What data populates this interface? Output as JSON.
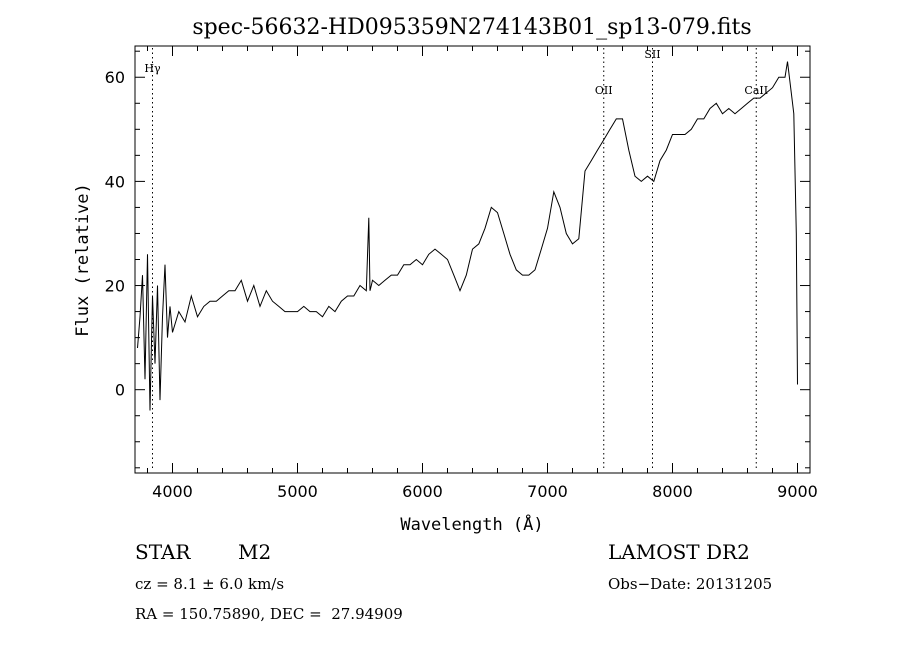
{
  "chart_data": {
    "type": "line",
    "title": "spec-56632-HD095359N274143B01_sp13-079.fits",
    "xlabel": "Wavelength (Å)",
    "ylabel": "Flux (relative)",
    "xlim": [
      3700,
      9100
    ],
    "ylim": [
      -16,
      66
    ],
    "xticks": [
      4000,
      5000,
      6000,
      7000,
      8000,
      9000
    ],
    "yticks": [
      0,
      20,
      40,
      60
    ],
    "line_markers": [
      {
        "label": "Hγ",
        "x": 3840
      },
      {
        "label": "OII",
        "x": 7450
      },
      {
        "label": "SII",
        "x": 7840
      },
      {
        "label": "CaII",
        "x": 8670
      }
    ],
    "series": [
      {
        "x": [
          3720,
          3740,
          3760,
          3780,
          3800,
          3820,
          3840,
          3860,
          3880,
          3900,
          3920,
          3940,
          3960,
          3980,
          4000,
          4050,
          4100,
          4150,
          4200,
          4250,
          4300,
          4350,
          4400,
          4450,
          4500,
          4550,
          4600,
          4650,
          4700,
          4750,
          4800,
          4850,
          4900,
          4950,
          5000,
          5050,
          5100,
          5150,
          5200,
          5250,
          5300,
          5350,
          5400,
          5450,
          5500,
          5550,
          5570,
          5580,
          5590,
          5600,
          5650,
          5700,
          5750,
          5800,
          5850,
          5900,
          5950,
          6000,
          6050,
          6100,
          6150,
          6200,
          6250,
          6300,
          6350,
          6400,
          6450,
          6500,
          6550,
          6600,
          6650,
          6700,
          6750,
          6800,
          6850,
          6900,
          6950,
          7000,
          7050,
          7100,
          7150,
          7200,
          7250,
          7300,
          7350,
          7400,
          7450,
          7500,
          7550,
          7600,
          7650,
          7700,
          7750,
          7800,
          7850,
          7900,
          7950,
          8000,
          8050,
          8100,
          8150,
          8200,
          8250,
          8300,
          8350,
          8400,
          8450,
          8500,
          8550,
          8600,
          8650,
          8700,
          8750,
          8800,
          8850,
          8900,
          8920,
          8950,
          8970,
          8990,
          9000
        ],
        "values": [
          8,
          14,
          22,
          2,
          26,
          -4,
          18,
          5,
          20,
          -2,
          14,
          24,
          10,
          16,
          11,
          15,
          13,
          18,
          14,
          16,
          17,
          17,
          18,
          19,
          19,
          21,
          17,
          20,
          16,
          19,
          17,
          16,
          15,
          15,
          15,
          16,
          15,
          15,
          14,
          16,
          15,
          17,
          18,
          18,
          20,
          19,
          33,
          19,
          20,
          21,
          20,
          21,
          22,
          22,
          24,
          24,
          25,
          24,
          26,
          27,
          26,
          25,
          22,
          19,
          22,
          27,
          28,
          31,
          35,
          34,
          30,
          26,
          23,
          22,
          22,
          23,
          27,
          31,
          38,
          35,
          30,
          28,
          29,
          42,
          44,
          46,
          48,
          50,
          52,
          52,
          46,
          41,
          40,
          41,
          40,
          44,
          46,
          49,
          49,
          49,
          50,
          52,
          52,
          54,
          55,
          53,
          54,
          53,
          54,
          55,
          56,
          56,
          57,
          58,
          60,
          60,
          63,
          57,
          53,
          30,
          1
        ]
      }
    ]
  },
  "info": {
    "object_class": "STAR",
    "subclass": "M2",
    "survey": "LAMOST DR2",
    "cz": "cz = 8.1 ± 6.0 km/s",
    "obs_date": "Obs−Date: 20131205",
    "radec": "RA = 150.75890, DEC =  27.94909"
  }
}
